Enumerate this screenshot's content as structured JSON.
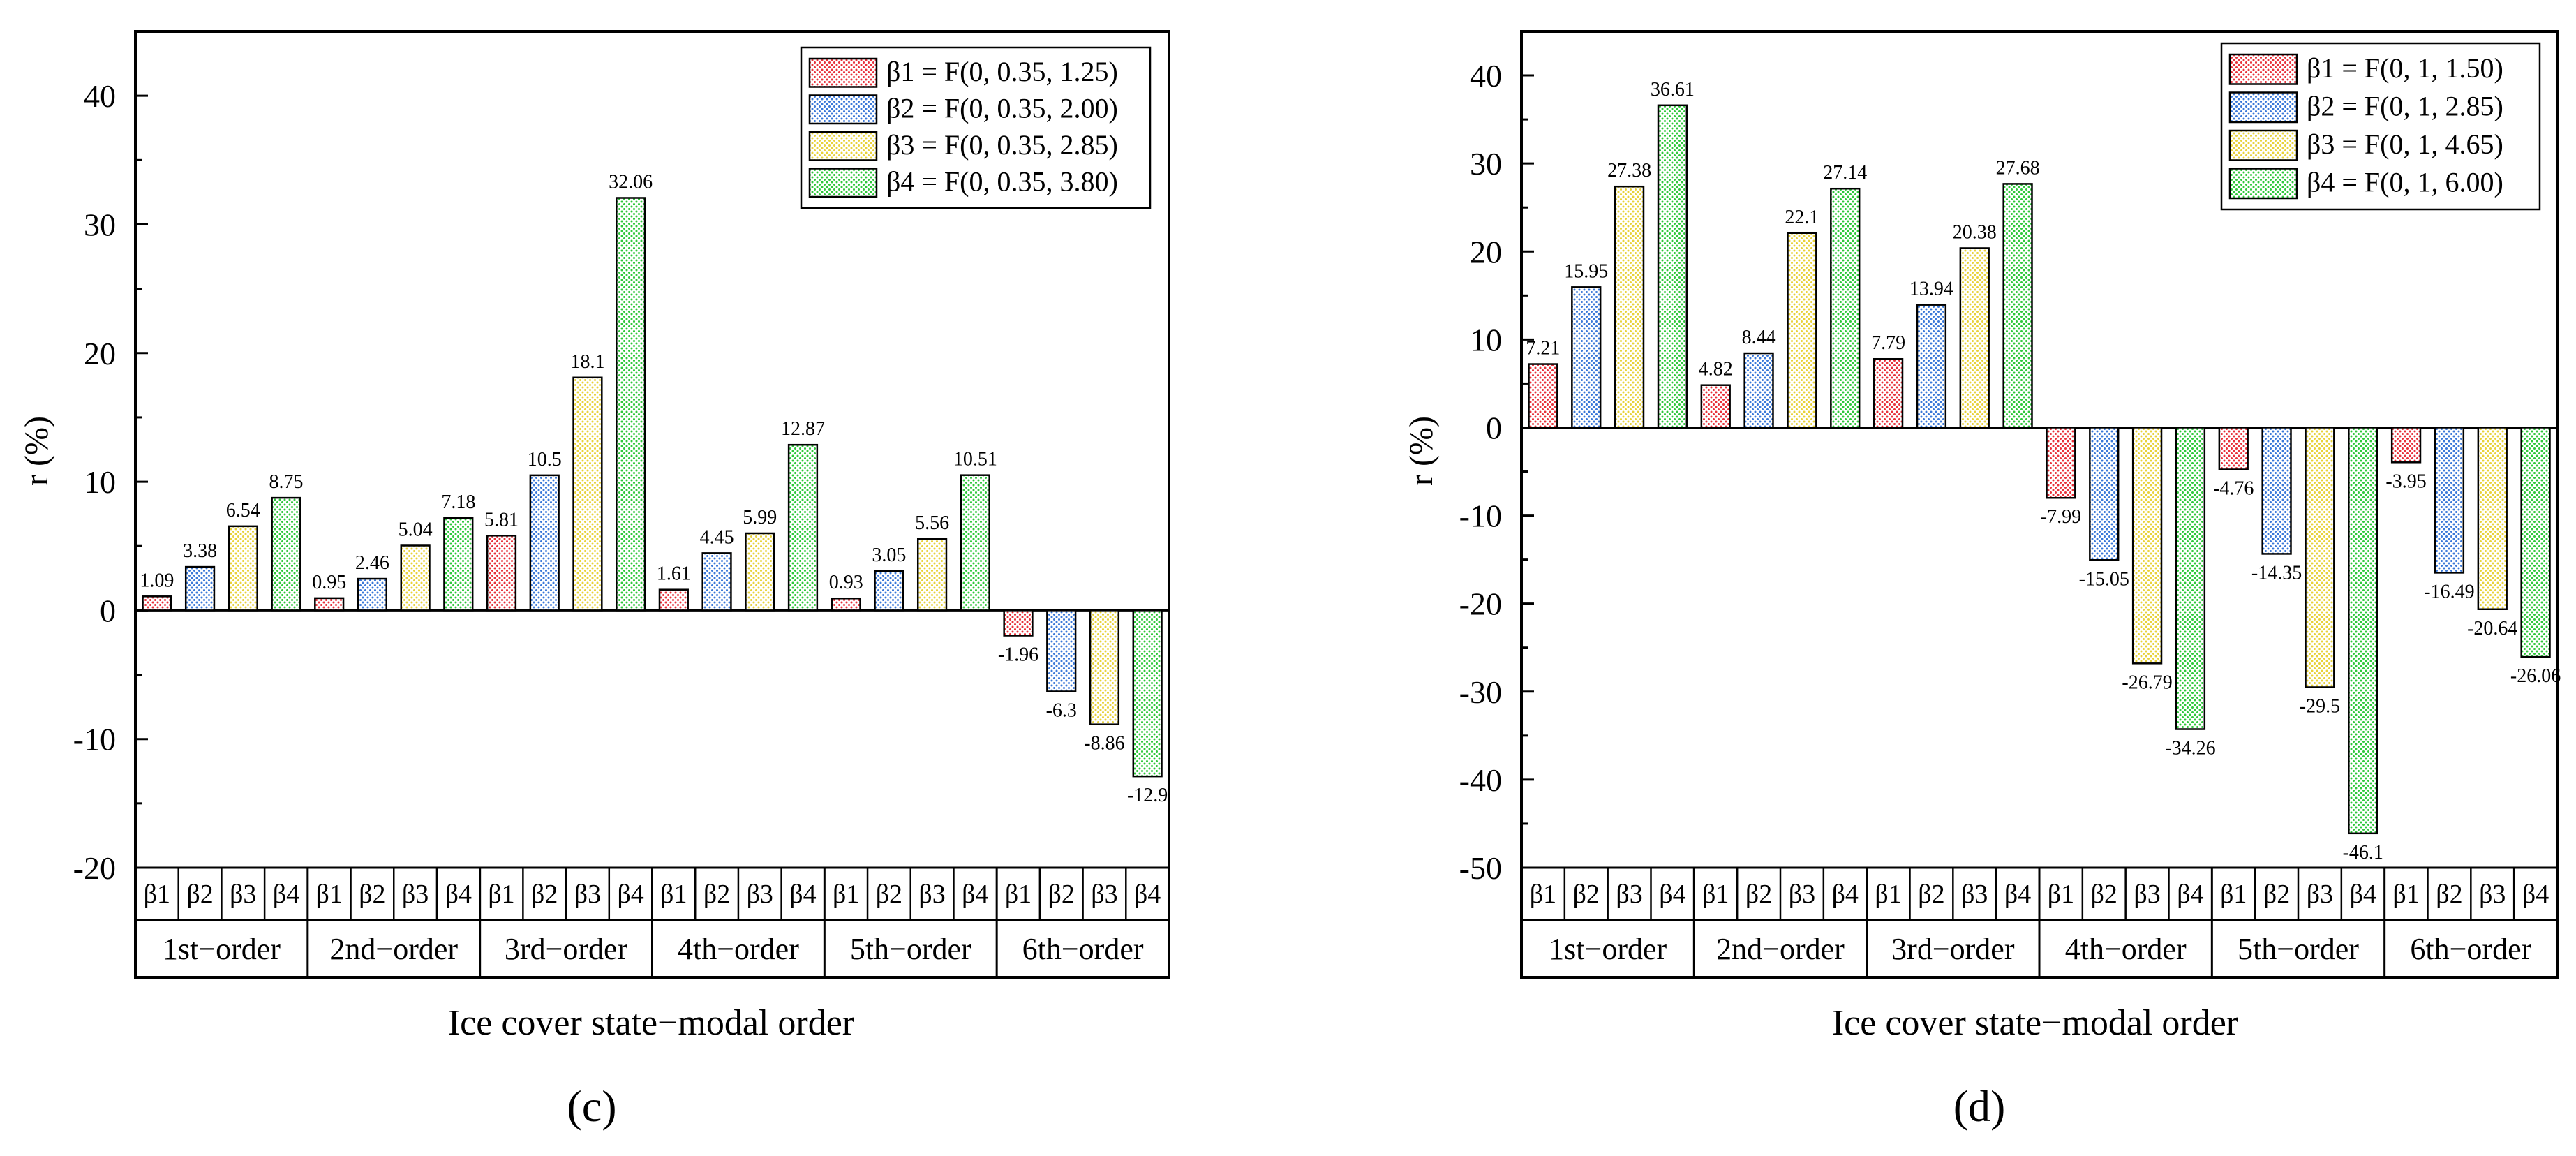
{
  "colors": {
    "beta1": "#e8303a",
    "beta2": "#3a78d8",
    "beta3": "#e8d23a",
    "beta4": "#2ec83a"
  },
  "chart_data": [
    {
      "type": "bar",
      "panel_label": "(c)",
      "ylabel": "r  (%)",
      "xlabel": "Ice cover state−modal order",
      "ylim": [
        -20,
        45
      ],
      "yticks": [
        -20,
        -10,
        0,
        10,
        20,
        30,
        40
      ],
      "legend_position": "top-right",
      "categories": [
        "1st−order",
        "2nd−order",
        "3rd−order",
        "4th−order",
        "5th−order",
        "6th−order"
      ],
      "sub_labels": [
        "β1",
        "β2",
        "β3",
        "β4"
      ],
      "series": [
        {
          "name": "β1 = F(0, 0.35, 1.25)",
          "values": [
            1.09,
            0.95,
            5.81,
            1.61,
            0.93,
            -1.96
          ]
        },
        {
          "name": "β2 = F(0, 0.35, 2.00)",
          "values": [
            3.38,
            2.46,
            10.5,
            4.45,
            3.05,
            -6.3
          ]
        },
        {
          "name": "β3 = F(0, 0.35, 2.85)",
          "values": [
            6.54,
            5.04,
            18.1,
            5.99,
            5.56,
            -8.86
          ]
        },
        {
          "name": "β4 = F(0, 0.35, 3.80)",
          "values": [
            8.75,
            7.18,
            32.06,
            12.87,
            10.51,
            -12.9
          ]
        }
      ]
    },
    {
      "type": "bar",
      "panel_label": "(d)",
      "ylabel": "r  (%)",
      "xlabel": "Ice cover state−modal order",
      "ylim": [
        -50,
        45
      ],
      "yticks": [
        -50,
        -40,
        -30,
        -20,
        -10,
        0,
        10,
        20,
        30,
        40
      ],
      "legend_position": "top-right",
      "categories": [
        "1st−order",
        "2nd−order",
        "3rd−order",
        "4th−order",
        "5th−order",
        "6th−order"
      ],
      "sub_labels": [
        "β1",
        "β2",
        "β3",
        "β4"
      ],
      "series": [
        {
          "name": "β1 = F(0, 1, 1.50)",
          "values": [
            7.21,
            4.82,
            7.79,
            -7.99,
            -4.76,
            -3.95
          ]
        },
        {
          "name": "β2 = F(0, 1, 2.85)",
          "values": [
            15.95,
            8.44,
            13.94,
            -15.05,
            -14.35,
            -16.49
          ]
        },
        {
          "name": "β3 = F(0, 1, 4.65)",
          "values": [
            27.38,
            22.1,
            20.38,
            -26.79,
            -29.5,
            -20.64
          ]
        },
        {
          "name": "β4 = F(0, 1, 6.00)",
          "values": [
            36.61,
            27.14,
            27.68,
            -34.26,
            -46.1,
            -26.06
          ]
        }
      ]
    }
  ]
}
